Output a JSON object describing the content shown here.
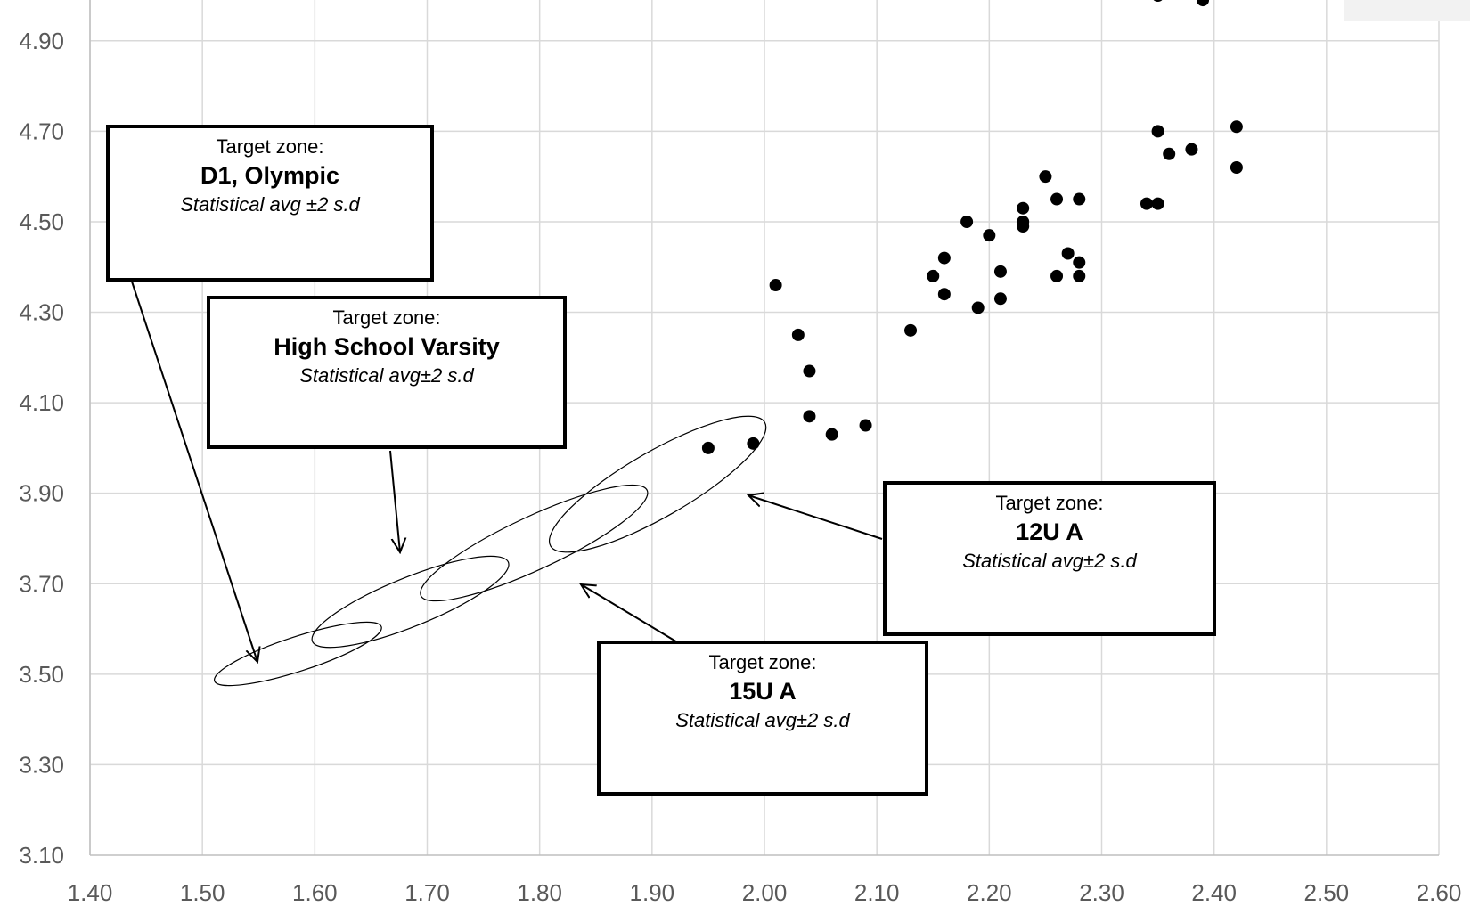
{
  "chart_data": {
    "type": "scatter",
    "title": "",
    "xlabel": "",
    "ylabel": "",
    "xlim": [
      1.4,
      2.6
    ],
    "ylim": [
      3.1,
      5.0
    ],
    "grid": true,
    "x_ticks": [
      "1.40",
      "1.50",
      "1.60",
      "1.70",
      "1.80",
      "1.90",
      "2.00",
      "2.10",
      "2.20",
      "2.30",
      "2.40",
      "2.50",
      "2.60"
    ],
    "y_ticks": [
      "3.10",
      "3.30",
      "3.50",
      "3.70",
      "3.90",
      "4.10",
      "4.30",
      "4.50",
      "4.70",
      "4.90"
    ],
    "series": [
      {
        "color": "#000000",
        "points": [
          [
            1.95,
            4.0
          ],
          [
            1.99,
            4.01
          ],
          [
            2.01,
            4.36
          ],
          [
            2.03,
            4.25
          ],
          [
            2.04,
            4.17
          ],
          [
            2.04,
            4.07
          ],
          [
            2.06,
            4.03
          ],
          [
            2.09,
            4.05
          ],
          [
            2.13,
            4.26
          ],
          [
            2.15,
            4.38
          ],
          [
            2.16,
            4.42
          ],
          [
            2.16,
            4.34
          ],
          [
            2.18,
            4.5
          ],
          [
            2.19,
            4.31
          ],
          [
            2.2,
            4.47
          ],
          [
            2.21,
            4.39
          ],
          [
            2.21,
            4.33
          ],
          [
            2.23,
            4.53
          ],
          [
            2.23,
            4.5
          ],
          [
            2.23,
            4.49
          ],
          [
            2.25,
            4.6
          ],
          [
            2.26,
            4.55
          ],
          [
            2.26,
            4.38
          ],
          [
            2.27,
            4.43
          ],
          [
            2.28,
            4.55
          ],
          [
            2.28,
            4.41
          ],
          [
            2.28,
            4.38
          ],
          [
            2.34,
            4.54
          ],
          [
            2.35,
            4.54
          ],
          [
            2.35,
            4.7
          ],
          [
            2.36,
            4.65
          ],
          [
            2.38,
            4.66
          ],
          [
            2.42,
            4.71
          ],
          [
            2.42,
            4.62
          ],
          [
            2.35,
            5.0
          ],
          [
            2.39,
            4.99
          ]
        ]
      }
    ],
    "target_zones": [
      {
        "label": "D1, Olympic",
        "cx": 1.585,
        "cy": 3.545,
        "rx": 0.078,
        "ry": 0.085,
        "angle": -18
      },
      {
        "label": "High School Varsity",
        "cx": 1.685,
        "cy": 3.66,
        "rx": 0.094,
        "ry": 0.12,
        "angle": -22
      },
      {
        "label": "15U A",
        "cx": 1.795,
        "cy": 3.79,
        "rx": 0.111,
        "ry": 0.13,
        "angle": -25
      },
      {
        "label": "12U A",
        "cx": 1.905,
        "cy": 3.92,
        "rx": 0.11,
        "ry": 0.16,
        "angle": -30
      }
    ]
  },
  "callouts": [
    {
      "head": "Target zone:",
      "name": "D1, Olympic",
      "note": "Statistical avg ±2 s.d"
    },
    {
      "head": "Target zone:",
      "name": "High School Varsity",
      "note": "Statistical avg±2 s.d"
    },
    {
      "head": "Target zone:",
      "name": "12U A",
      "note": "Statistical avg±2 s.d"
    },
    {
      "head": "Target zone:",
      "name": "15U A",
      "note": "Statistical avg±2 s.d"
    }
  ]
}
